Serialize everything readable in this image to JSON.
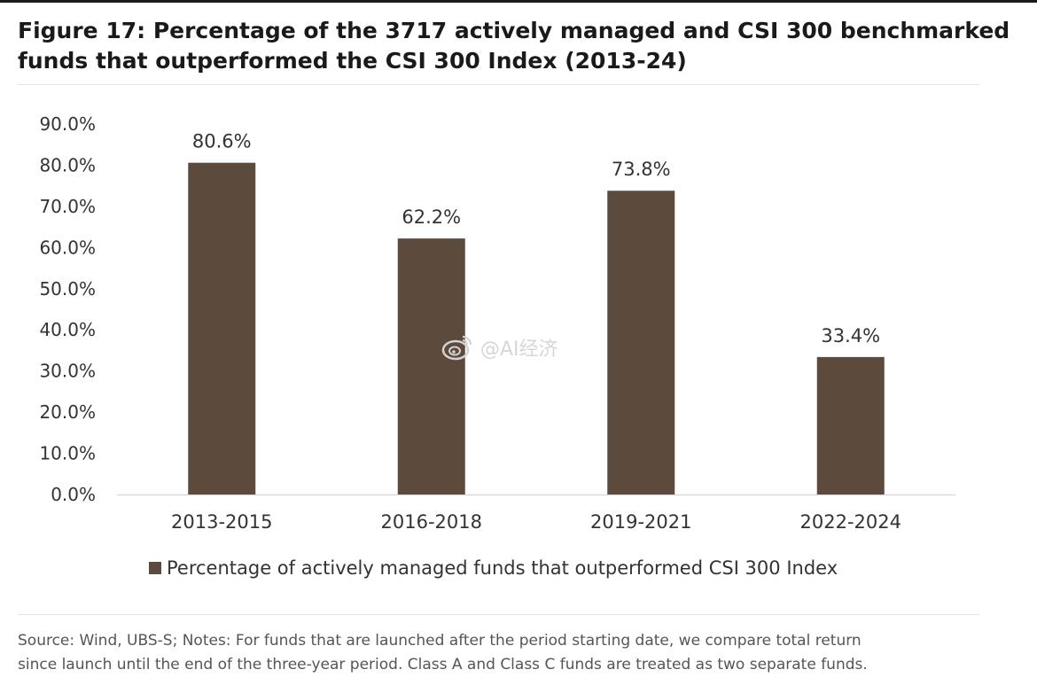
{
  "title_lines": [
    "Figure 17: Percentage of the 3717 actively managed and CSI 300 benchmarked",
    "funds that outperformed the CSI 300 Index (2013-24)"
  ],
  "watermark": "@AI经济",
  "source_lines": [
    "Source: Wind, UBS-S; Notes: For funds that are launched after the period starting date, we compare total return",
    "since launch until the end of the three-year period. Class A and Class C funds are treated as two separate funds."
  ],
  "colors": {
    "bar": "#5c4a3c",
    "axis": "#d9d9d9"
  },
  "chart_data": {
    "type": "bar",
    "title": "Figure 17: Percentage of the 3717 actively managed and CSI 300 benchmarked funds that outperformed the CSI 300 Index (2013-24)",
    "categories": [
      "2013-2015",
      "2016-2018",
      "2019-2021",
      "2022-2024"
    ],
    "series": [
      {
        "name": "Percentage of actively managed funds that outperformed CSI 300 Index",
        "values": [
          80.6,
          62.2,
          73.8,
          33.4
        ],
        "data_labels": [
          "80.6%",
          "62.2%",
          "73.8%",
          "33.4%"
        ]
      }
    ],
    "ylim": [
      0,
      90
    ],
    "yticks": [
      "0.0%",
      "10.0%",
      "20.0%",
      "30.0%",
      "40.0%",
      "50.0%",
      "60.0%",
      "70.0%",
      "80.0%",
      "90.0%"
    ],
    "ytick_values": [
      0,
      10,
      20,
      30,
      40,
      50,
      60,
      70,
      80,
      90
    ],
    "grid": false,
    "legend": "bottom"
  }
}
